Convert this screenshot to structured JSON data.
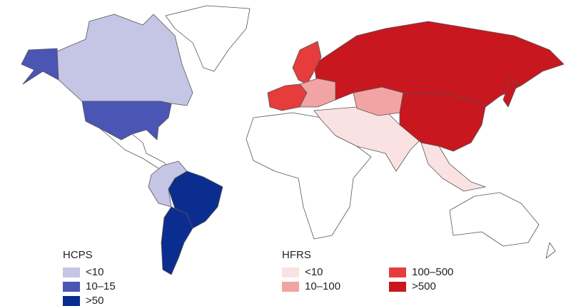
{
  "legends": [
    {
      "title": "HCPS",
      "items": [
        {
          "label": "<10",
          "color": "#c5c5e6"
        },
        {
          "label": "10–15",
          "color": "#4b55b3"
        },
        {
          "label": ">50",
          "color": "#0b2d8f"
        }
      ]
    },
    {
      "title": "HFRS",
      "items": [
        {
          "label": "<10",
          "color": "#fbe2e2"
        },
        {
          "label": "10–100",
          "color": "#f2a3a3"
        },
        {
          "label": "100–500",
          "color": "#e63c3c"
        },
        {
          "label": ">500",
          "color": "#c8171f"
        }
      ]
    }
  ]
}
